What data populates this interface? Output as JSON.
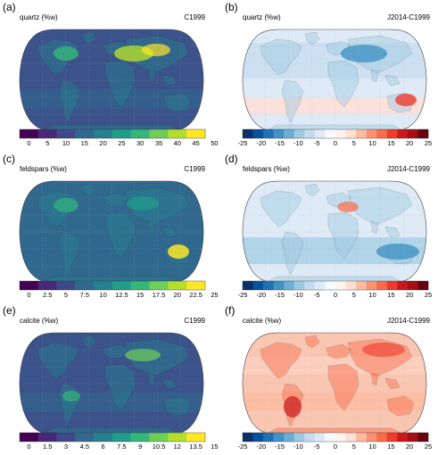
{
  "panels": [
    {
      "id": "a",
      "letter": "(a)",
      "variable": "quartz (%w)",
      "dataset": "C1999",
      "field": "quartz",
      "colorbar": {
        "type": "sequential",
        "ticks": [
          "0",
          "5",
          "10",
          "15",
          "20",
          "25",
          "30",
          "35",
          "40",
          "45",
          "50"
        ],
        "colors": [
          "#440154",
          "#482878",
          "#3e4989",
          "#31688e",
          "#26828e",
          "#1f9e89",
          "#35b779",
          "#6ece58",
          "#b5de2b",
          "#fde725"
        ]
      }
    },
    {
      "id": "b",
      "letter": "(b)",
      "variable": "quartz (%w)",
      "dataset": "J2014-C1999",
      "field": "quartz_diff",
      "colorbar": {
        "type": "diverging",
        "ticks": [
          "-25",
          "-20",
          "-15",
          "-10",
          "-5",
          "0",
          "5",
          "10",
          "15",
          "20",
          "25"
        ],
        "colors": [
          "#08306b",
          "#08519c",
          "#2171b5",
          "#4292c6",
          "#6baed6",
          "#9ecae1",
          "#c6dbef",
          "#deebf7",
          "#f7fbff",
          "#fff5f0",
          "#fee0d2",
          "#fcbba1",
          "#fc9272",
          "#fb6a4a",
          "#ef3b2c",
          "#cb181d",
          "#a50f15",
          "#67000d"
        ]
      }
    },
    {
      "id": "c",
      "letter": "(c)",
      "variable": "feldspars (%w)",
      "dataset": "C1999",
      "field": "feldspars",
      "colorbar": {
        "type": "sequential",
        "ticks": [
          "0",
          "2.5",
          "5",
          "7.5",
          "10",
          "12.5",
          "15",
          "17.5",
          "20",
          "22.5",
          "25"
        ],
        "colors": [
          "#440154",
          "#482878",
          "#3e4989",
          "#31688e",
          "#26828e",
          "#1f9e89",
          "#35b779",
          "#6ece58",
          "#b5de2b",
          "#fde725"
        ]
      }
    },
    {
      "id": "d",
      "letter": "(d)",
      "variable": "feldspars (%w)",
      "dataset": "J2014-C1999",
      "field": "feldspars_diff",
      "colorbar": {
        "type": "diverging",
        "ticks": [
          "-25",
          "-20",
          "-15",
          "-10",
          "-5",
          "0",
          "5",
          "10",
          "15",
          "20",
          "25"
        ],
        "colors": [
          "#08306b",
          "#08519c",
          "#2171b5",
          "#4292c6",
          "#6baed6",
          "#9ecae1",
          "#c6dbef",
          "#deebf7",
          "#f7fbff",
          "#fff5f0",
          "#fee0d2",
          "#fcbba1",
          "#fc9272",
          "#fb6a4a",
          "#ef3b2c",
          "#cb181d",
          "#a50f15",
          "#67000d"
        ]
      }
    },
    {
      "id": "e",
      "letter": "(e)",
      "variable": "calcite (%w)",
      "dataset": "C1999",
      "field": "calcite",
      "colorbar": {
        "type": "sequential",
        "ticks": [
          "0",
          "1.5",
          "3",
          "4.5",
          "6",
          "7.5",
          "9",
          "10.5",
          "12",
          "13.5",
          "15"
        ],
        "colors": [
          "#440154",
          "#482878",
          "#3e4989",
          "#31688e",
          "#26828e",
          "#1f9e89",
          "#35b779",
          "#6ece58",
          "#b5de2b",
          "#fde725"
        ]
      }
    },
    {
      "id": "f",
      "letter": "(f)",
      "variable": "calcite (%w)",
      "dataset": "J2014-C1999",
      "field": "calcite_diff",
      "colorbar": {
        "type": "diverging",
        "ticks": [
          "-25",
          "-20",
          "-15",
          "-10",
          "-5",
          "0",
          "5",
          "10",
          "15",
          "20",
          "25"
        ],
        "colors": [
          "#08306b",
          "#08519c",
          "#2171b5",
          "#4292c6",
          "#6baed6",
          "#9ecae1",
          "#c6dbef",
          "#deebf7",
          "#f7fbff",
          "#fff5f0",
          "#fee0d2",
          "#fcbba1",
          "#fc9272",
          "#fb6a4a",
          "#ef3b2c",
          "#cb181d",
          "#a50f15",
          "#67000d"
        ]
      }
    }
  ]
}
